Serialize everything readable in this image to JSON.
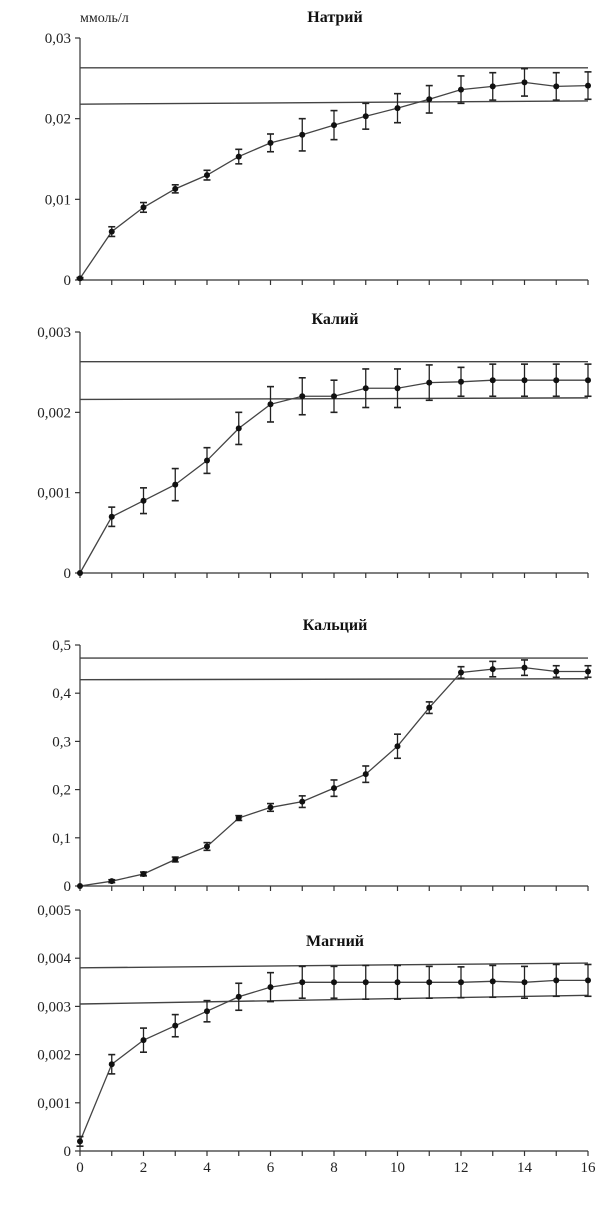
{
  "chart_data": [
    {
      "type": "line",
      "title": "Натрий",
      "unit": "ммоль/л",
      "ylim": [
        0,
        0.03
      ],
      "xlim": [
        0,
        16
      ],
      "yticks": [
        0,
        0.01,
        0.02,
        0.03
      ],
      "ytick_labels": [
        "0",
        "0,01",
        "0,02",
        "0,03"
      ],
      "x": [
        0,
        1,
        2,
        3,
        4,
        5,
        6,
        7,
        8,
        9,
        10,
        11,
        12,
        13,
        14,
        15,
        16
      ],
      "series": [
        {
          "values": [
            0.0002,
            0.006,
            0.009,
            0.0113,
            0.013,
            0.0153,
            0.017,
            0.018,
            0.0192,
            0.0203,
            0.0213,
            0.0224,
            0.0236,
            0.024,
            0.0245,
            0.024,
            0.0241
          ],
          "errors": [
            0.0001,
            0.0006,
            0.0006,
            0.0005,
            0.0006,
            0.0009,
            0.0011,
            0.002,
            0.0018,
            0.0016,
            0.0018,
            0.0017,
            0.0017,
            0.0017,
            0.0017,
            0.0017,
            0.0017
          ]
        }
      ],
      "reference_lines": [
        [
          0.0263,
          0.0263
        ],
        [
          0.0218,
          0.0222
        ]
      ]
    },
    {
      "type": "line",
      "title": "Калий",
      "ylim": [
        0,
        0.003
      ],
      "xlim": [
        0,
        16
      ],
      "yticks": [
        0,
        0.001,
        0.002,
        0.003
      ],
      "ytick_labels": [
        "0",
        "0,001",
        "0,002",
        "0,003"
      ],
      "x": [
        0,
        1,
        2,
        3,
        4,
        5,
        6,
        7,
        8,
        9,
        10,
        11,
        12,
        13,
        14,
        15,
        16
      ],
      "series": [
        {
          "values": [
            0.0,
            0.0007,
            0.0009,
            0.0011,
            0.0014,
            0.0018,
            0.0021,
            0.0022,
            0.0022,
            0.0023,
            0.0023,
            0.00237,
            0.00238,
            0.0024,
            0.0024,
            0.0024,
            0.0024
          ],
          "errors": [
            0.0,
            0.00012,
            0.00016,
            0.0002,
            0.00016,
            0.0002,
            0.00022,
            0.00023,
            0.0002,
            0.00024,
            0.00024,
            0.00022,
            0.00018,
            0.0002,
            0.0002,
            0.0002,
            0.0002
          ]
        }
      ],
      "reference_lines": [
        [
          0.00263,
          0.00263
        ],
        [
          0.00216,
          0.00218
        ]
      ]
    },
    {
      "type": "line",
      "title": "Кальций",
      "ylim": [
        0,
        0.5
      ],
      "xlim": [
        0,
        16
      ],
      "yticks": [
        0,
        0.1,
        0.2,
        0.3,
        0.4,
        0.5
      ],
      "ytick_labels": [
        "0",
        "0,1",
        "0,2",
        "0,3",
        "0,4",
        "0,5"
      ],
      "x": [
        0,
        1,
        2,
        3,
        4,
        5,
        6,
        7,
        8,
        9,
        10,
        11,
        12,
        13,
        14,
        15,
        16
      ],
      "series": [
        {
          "values": [
            0.0,
            0.01,
            0.025,
            0.055,
            0.082,
            0.141,
            0.163,
            0.175,
            0.203,
            0.232,
            0.29,
            0.37,
            0.443,
            0.45,
            0.453,
            0.445,
            0.445
          ],
          "errors": [
            0.0,
            0.003,
            0.004,
            0.005,
            0.008,
            0.005,
            0.008,
            0.012,
            0.017,
            0.017,
            0.025,
            0.012,
            0.012,
            0.016,
            0.016,
            0.012,
            0.012
          ]
        }
      ],
      "reference_lines": [
        [
          0.473,
          0.473
        ],
        [
          0.428,
          0.43
        ]
      ]
    },
    {
      "type": "line",
      "title": "Магний",
      "ylim": [
        0,
        0.005
      ],
      "xlim": [
        0,
        16
      ],
      "yticks": [
        0,
        0.001,
        0.002,
        0.003,
        0.004,
        0.005
      ],
      "ytick_labels": [
        "0",
        "0,001",
        "0,002",
        "0,003",
        "0,004",
        "0,005"
      ],
      "xticks": [
        0,
        2,
        4,
        6,
        8,
        10,
        12,
        14,
        16
      ],
      "xtick_labels": [
        "0",
        "2",
        "4",
        "6",
        "8",
        "10",
        "12",
        "14",
        "16"
      ],
      "x": [
        0,
        1,
        2,
        3,
        4,
        5,
        6,
        7,
        8,
        9,
        10,
        11,
        12,
        13,
        14,
        15,
        16
      ],
      "series": [
        {
          "values": [
            0.0002,
            0.0018,
            0.0023,
            0.0026,
            0.0029,
            0.0032,
            0.0034,
            0.0035,
            0.0035,
            0.0035,
            0.0035,
            0.0035,
            0.0035,
            0.00352,
            0.0035,
            0.00354,
            0.00354
          ],
          "errors": [
            0.0001,
            0.0002,
            0.00025,
            0.00023,
            0.00022,
            0.00028,
            0.0003,
            0.00033,
            0.00033,
            0.00035,
            0.00035,
            0.00033,
            0.00032,
            0.00033,
            0.00033,
            0.00033,
            0.00033
          ]
        }
      ],
      "reference_lines": [
        [
          0.0038,
          0.0039
        ],
        [
          0.00305,
          0.00323
        ]
      ]
    }
  ]
}
